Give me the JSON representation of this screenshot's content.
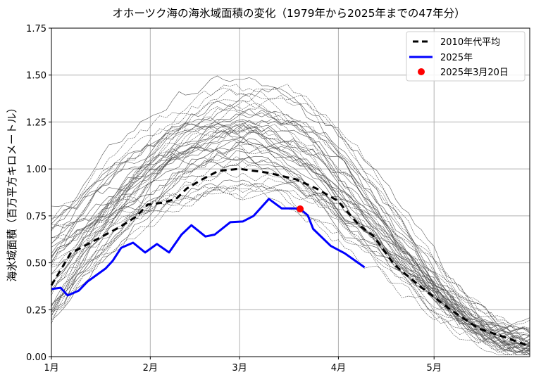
{
  "chart_data": {
    "type": "line",
    "title": "オホーツク海の海氷域面積の変化（1979年から2025年までの47年分）",
    "xlabel": "",
    "ylabel": "海氷域面積（百万平方キロメートル）",
    "x_unit": "day of year from Jan 1",
    "xlim": [
      0,
      150
    ],
    "ylim": [
      0,
      1.75
    ],
    "x_ticks": [
      {
        "day": 0,
        "label": "1月"
      },
      {
        "day": 31,
        "label": "2月"
      },
      {
        "day": 59,
        "label": "3月"
      },
      {
        "day": 90,
        "label": "4月"
      },
      {
        "day": 120,
        "label": "5月"
      }
    ],
    "y_ticks": [
      {
        "value": 0,
        "label": "0.00"
      },
      {
        "value": 0.25,
        "label": "0.25"
      },
      {
        "value": 0.5,
        "label": "0.50"
      },
      {
        "value": 0.75,
        "label": "0.75"
      },
      {
        "value": 1.0,
        "label": "1.00"
      },
      {
        "value": 1.25,
        "label": "1.25"
      },
      {
        "value": 1.5,
        "label": "1.50"
      },
      {
        "value": 1.75,
        "label": "1.75"
      }
    ],
    "grid": true,
    "legend_position": "top-right",
    "series": [
      {
        "name": "2010年代平均",
        "color": "#000000",
        "style": "dashed",
        "x": [
          0,
          6,
          10.4,
          17,
          21.4,
          26.5,
          30.2,
          34.7,
          39.1,
          42.4,
          46.8,
          52.4,
          59,
          67.8,
          76.6,
          83.2,
          89.8,
          96.5,
          100.9,
          107.5,
          116.3,
          125.2,
          134,
          142.8,
          150
        ],
        "y": [
          0.38,
          0.55,
          0.59,
          0.65,
          0.69,
          0.745,
          0.81,
          0.82,
          0.84,
          0.895,
          0.94,
          0.99,
          1.0,
          0.98,
          0.945,
          0.895,
          0.83,
          0.7,
          0.645,
          0.49,
          0.365,
          0.25,
          0.15,
          0.1,
          0.055
        ]
      },
      {
        "name": "2025年",
        "color": "#0000ff",
        "style": "solid",
        "x": [
          0,
          2.9,
          5.1,
          8.6,
          11.3,
          17,
          19.2,
          21.9,
          25.6,
          29.4,
          33.1,
          36.9,
          40.8,
          43.9,
          48.3,
          51.2,
          56.1,
          60,
          63.4,
          68.2,
          72.2,
          76.2,
          78,
          80.4,
          82.1,
          87.6,
          92,
          98.2
        ],
        "y": [
          0.36,
          0.367,
          0.326,
          0.352,
          0.4,
          0.47,
          0.51,
          0.58,
          0.607,
          0.555,
          0.6,
          0.555,
          0.65,
          0.7,
          0.64,
          0.65,
          0.716,
          0.72,
          0.75,
          0.84,
          0.79,
          0.79,
          0.787,
          0.753,
          0.68,
          0.59,
          0.55,
          0.476
        ]
      }
    ],
    "marker": {
      "name": "2025年3月20日",
      "x": 78,
      "y": 0.787,
      "color": "#ff0000"
    },
    "background_lines_color": "#555555"
  }
}
